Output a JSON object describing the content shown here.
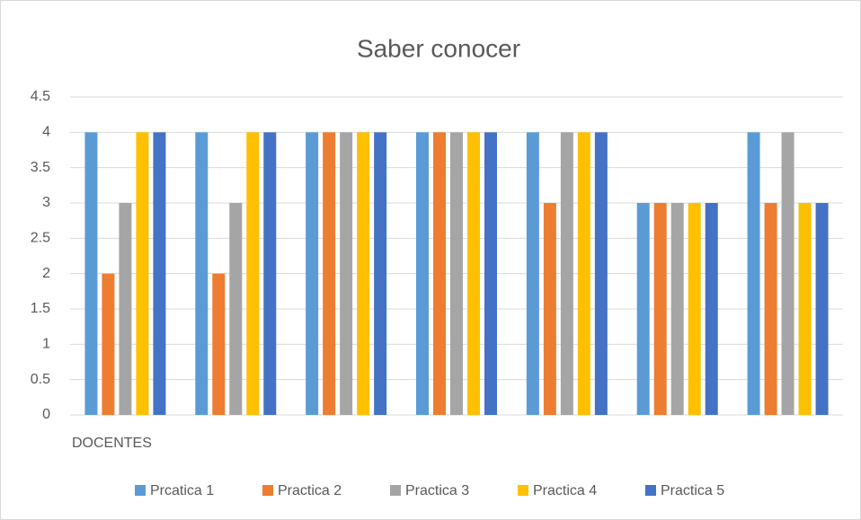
{
  "chart_data": {
    "type": "bar",
    "title": "Saber conocer",
    "categories": [
      "DOCENTES",
      null,
      null,
      null,
      null,
      null,
      null
    ],
    "series": [
      {
        "name": "Prcatica 1",
        "color": "#5b9bd5",
        "values": [
          4,
          4,
          4,
          4,
          4,
          3,
          4
        ]
      },
      {
        "name": "Practica 2",
        "color": "#ed7d31",
        "values": [
          2,
          2,
          4,
          4,
          3,
          3,
          3
        ]
      },
      {
        "name": "Practica 3",
        "color": "#a5a5a5",
        "values": [
          3,
          3,
          4,
          4,
          4,
          3,
          4
        ]
      },
      {
        "name": "Practica 4",
        "color": "#ffc000",
        "values": [
          4,
          4,
          4,
          4,
          4,
          3,
          3
        ]
      },
      {
        "name": "Practica 5",
        "color": "#4472c4",
        "values": [
          4,
          4,
          4,
          4,
          4,
          3,
          3
        ]
      }
    ],
    "ylim": [
      0,
      4.5
    ],
    "yticks": [
      0,
      0.5,
      1,
      1.5,
      2,
      2.5,
      3,
      3.5,
      4,
      4.5
    ],
    "grid": true,
    "legend": "bottom"
  }
}
